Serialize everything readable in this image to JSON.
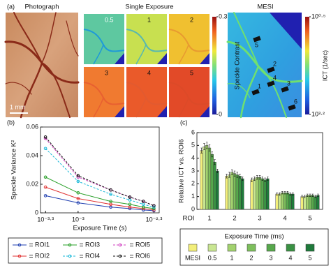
{
  "panel_a": {
    "label": "(a)",
    "photograph": {
      "title": "Photograph",
      "scale": "1 mm"
    },
    "single_exposure": {
      "title": "Single Exposure",
      "tiles": [
        "0.5",
        "1",
        "2",
        "3",
        "4",
        "5"
      ],
      "colorbar": {
        "label": "Speckle Contrast",
        "ticks": [
          0,
          0.3
        ]
      }
    },
    "mesi": {
      "title": "MESI",
      "rois": [
        "1",
        "2",
        "3",
        "4",
        "5",
        "6"
      ],
      "colorbar": {
        "label": "ICT (1/sec)",
        "ticks": [
          {
            "value": 0.5,
            "label": "10⁰·⁵"
          },
          {
            "value": 3.2,
            "label": "10³·²"
          }
        ]
      }
    }
  },
  "chart_data": [
    {
      "type": "line",
      "label": "(b)",
      "xlabel": "Exposure Time (s)",
      "ylabel": "Speckle Variance K²",
      "x": [
        0.0005,
        0.001,
        0.002,
        0.003,
        0.004,
        0.005
      ],
      "log_x": true,
      "xlim": [
        0.00045,
        0.0056
      ],
      "xticks": [
        {
          "value": 0.000501,
          "label": "10⁻³·³"
        },
        {
          "value": 0.001,
          "label": "10⁻³"
        },
        {
          "value": 0.00501,
          "label": "10⁻²·³"
        }
      ],
      "ylim": [
        0,
        0.06
      ],
      "yticks": [
        0,
        0.02,
        0.04,
        0.06
      ],
      "series": [
        {
          "name": "ROI1",
          "color": "#1f3fb0",
          "dashed": false,
          "values": [
            0.012,
            0.007,
            0.004,
            0.003,
            0.002,
            0.0015
          ]
        },
        {
          "name": "ROI2",
          "color": "#e03030",
          "dashed": false,
          "values": [
            0.018,
            0.01,
            0.006,
            0.004,
            0.003,
            0.002
          ]
        },
        {
          "name": "ROI3",
          "color": "#2aa02a",
          "dashed": false,
          "values": [
            0.025,
            0.014,
            0.008,
            0.006,
            0.004,
            0.003
          ]
        },
        {
          "name": "ROI4",
          "color": "#18b8d8",
          "dashed": true,
          "values": [
            0.045,
            0.022,
            0.013,
            0.009,
            0.006,
            0.004
          ]
        },
        {
          "name": "ROI5",
          "color": "#d040c0",
          "dashed": true,
          "values": [
            0.052,
            0.025,
            0.016,
            0.011,
            0.008,
            0.005
          ]
        },
        {
          "name": "ROI6",
          "color": "#111111",
          "dashed": true,
          "values": [
            0.053,
            0.026,
            0.016,
            0.011,
            0.008,
            0.005
          ]
        }
      ]
    },
    {
      "type": "bar",
      "label": "(c)",
      "xlabel": "ROI",
      "ylabel": "Relative ICT vs. ROI6",
      "legend_title": "Exposure Time (ms)",
      "categories": [
        "1",
        "2",
        "3",
        "4",
        "5"
      ],
      "ylim": [
        0,
        6
      ],
      "yticks": [
        0,
        1,
        2,
        3,
        4,
        5,
        6
      ],
      "series": [
        {
          "name": "MESI",
          "color": "#f2ee7a",
          "values": [
            4.6,
            2.6,
            2.3,
            1.2,
            1.0
          ],
          "errors": [
            0.2,
            0.15,
            0.15,
            0.1,
            0.1
          ]
        },
        {
          "name": "0.5",
          "color": "#c9e692",
          "values": [
            4.9,
            2.7,
            2.4,
            1.2,
            1.0
          ],
          "errors": [
            0.25,
            0.2,
            0.15,
            0.1,
            0.1
          ]
        },
        {
          "name": "1",
          "color": "#a2d26e",
          "values": [
            5.0,
            2.9,
            2.5,
            1.3,
            1.1
          ],
          "errors": [
            0.25,
            0.2,
            0.15,
            0.1,
            0.1
          ]
        },
        {
          "name": "2",
          "color": "#7dbf5c",
          "values": [
            4.8,
            2.8,
            2.5,
            1.3,
            1.1
          ],
          "errors": [
            0.25,
            0.2,
            0.15,
            0.1,
            0.1
          ]
        },
        {
          "name": "3",
          "color": "#57a84c",
          "values": [
            4.3,
            2.7,
            2.4,
            1.3,
            1.1
          ],
          "errors": [
            0.2,
            0.2,
            0.15,
            0.1,
            0.1
          ]
        },
        {
          "name": "4",
          "color": "#3a9143",
          "values": [
            3.7,
            2.6,
            2.3,
            1.2,
            1.0
          ],
          "errors": [
            0.2,
            0.15,
            0.15,
            0.1,
            0.1
          ]
        },
        {
          "name": "5",
          "color": "#1f7a3b",
          "values": [
            3.0,
            2.4,
            2.4,
            1.2,
            1.1
          ],
          "errors": [
            0.15,
            0.15,
            0.15,
            0.1,
            0.1
          ]
        }
      ]
    }
  ]
}
